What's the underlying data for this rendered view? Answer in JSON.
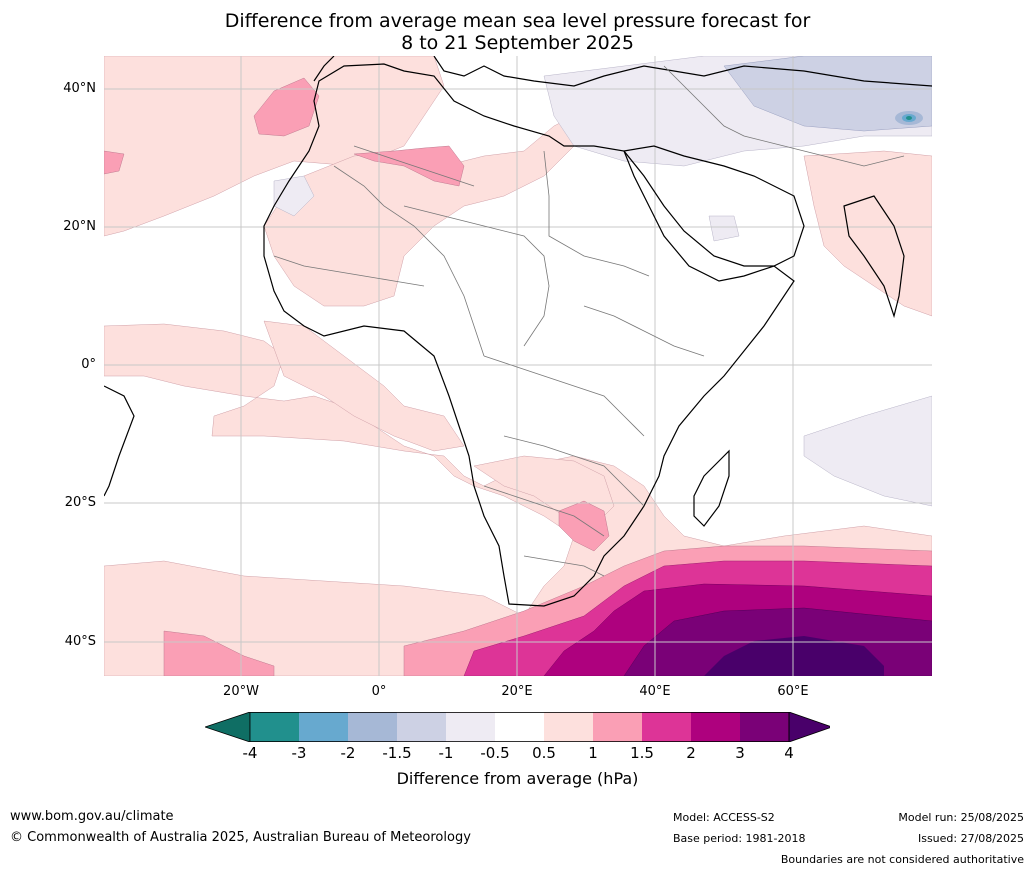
{
  "title_line1": "Difference from average mean sea level pressure forecast for",
  "title_line2": "8 to 21 September 2025",
  "lat_labels": [
    "40°N",
    "20°N",
    "0°",
    "20°S",
    "40°S"
  ],
  "lon_labels": [
    "20°W",
    "0°",
    "20°E",
    "40°E",
    "60°E"
  ],
  "colorbar": {
    "ticks": [
      "-4",
      "-3",
      "-2",
      "-1.5",
      "-1",
      "-0.5",
      "0.5",
      "1",
      "1.5",
      "2",
      "3",
      "4"
    ],
    "colors": [
      "#0f6e64",
      "#21908d",
      "#67a9cf",
      "#a6b8d6",
      "#cdd1e4",
      "#eeebf3",
      "#ffffff",
      "#fde0dd",
      "#fa9fb5",
      "#dd3497",
      "#ae017e",
      "#7a0177",
      "#49006a"
    ],
    "label": "Difference from average (hPa)"
  },
  "footer": {
    "site": "www.bom.gov.au/climate",
    "copyright": "© Commonwealth of Australia 2025, Australian Bureau of Meteorology",
    "model": "Model: ACCESS-S2",
    "base_period": "Base period: 1981-2018",
    "model_run": "Model run: 25/08/2025",
    "issued": "Issued: 27/08/2025",
    "disclaimer": "Boundaries are not considered authoritative"
  }
}
